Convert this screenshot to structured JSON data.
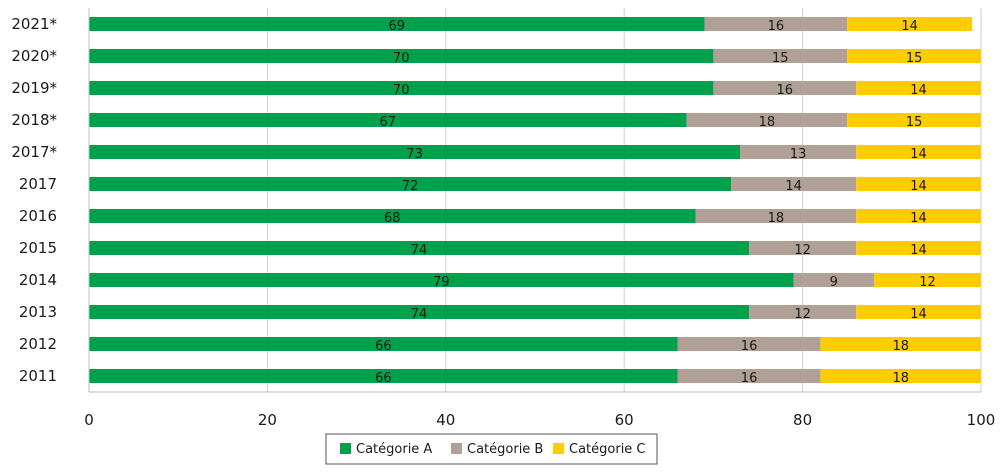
{
  "chart_data": {
    "type": "bar",
    "orientation": "horizontal",
    "stacked": true,
    "categories": [
      "2021*",
      "2020*",
      "2019*",
      "2018*",
      "2017*",
      "2017",
      "2016",
      "2015",
      "2014",
      "2013",
      "2012",
      "2011"
    ],
    "series": [
      {
        "name": "Catégorie A",
        "color": "#00A14B",
        "values": [
          69,
          70,
          70,
          67,
          73,
          72,
          68,
          74,
          79,
          74,
          66,
          66
        ]
      },
      {
        "name": "Catégorie B",
        "color": "#B0A095",
        "values": [
          16,
          15,
          16,
          18,
          13,
          14,
          18,
          12,
          9,
          12,
          16,
          16
        ]
      },
      {
        "name": "Catégorie C",
        "color": "#FFCC00",
        "values": [
          14,
          15,
          14,
          15,
          14,
          14,
          14,
          14,
          12,
          14,
          18,
          18
        ]
      }
    ],
    "xlim": [
      0,
      100
    ],
    "xticks": [
      "0",
      "20",
      "40",
      "60",
      "80",
      "100"
    ],
    "grid": true,
    "legend_position": "bottom"
  }
}
